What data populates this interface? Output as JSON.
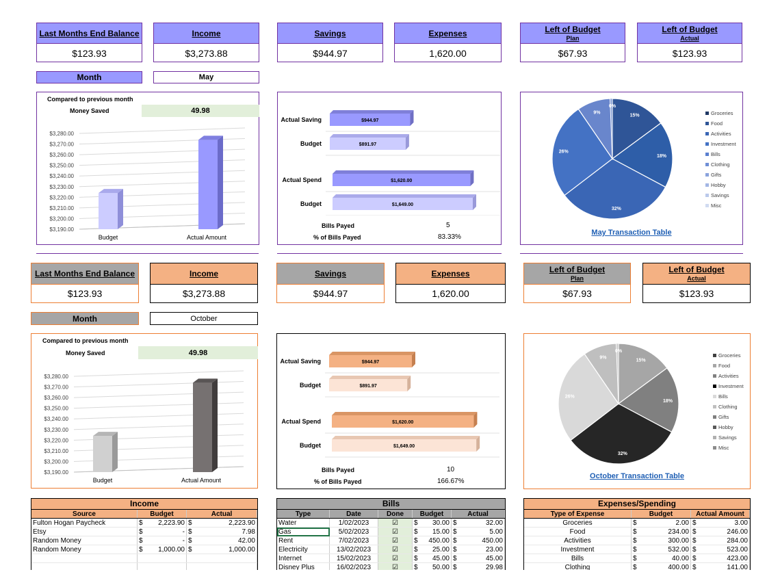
{
  "colors": {
    "purple_accent": "#9999ff",
    "purple_border": "#7030a0",
    "orange_accent": "#f4b183",
    "orange_border": "#ed7d31",
    "grey_accent": "#a6a6a6"
  },
  "may": {
    "kpis": [
      {
        "title": "Last Months End Balance",
        "sub": "",
        "value": "$123.93"
      },
      {
        "title": "Income",
        "sub": "",
        "value": "$3,273.88"
      },
      {
        "title": "Savings",
        "sub": "",
        "value": "$944.97"
      },
      {
        "title": "Expenses",
        "sub": "",
        "value": "1,620.00"
      },
      {
        "title": "Left of Budget",
        "sub": "Plan",
        "value": "$67.93"
      },
      {
        "title": "Left of Budget",
        "sub": "Actual",
        "value": "$123.93"
      }
    ],
    "month_label": "Month",
    "month_value": "May",
    "compared_label": "Compared to previous month",
    "money_saved_label": "Money Saved",
    "money_saved_value": "49.98",
    "bills_payed_label": "Bills Payed",
    "bills_payed_value": "5",
    "pct_bills_label": "% of Bills Payed",
    "pct_bills_value": "83.33%",
    "transaction_link": "May Transaction Table"
  },
  "october": {
    "kpis": [
      {
        "title": "Last Months End Balance",
        "sub": "",
        "value": "$123.93"
      },
      {
        "title": "Income",
        "sub": "",
        "value": "$3,273.88"
      },
      {
        "title": "Savings",
        "sub": "",
        "value": "$944.97"
      },
      {
        "title": "Expenses",
        "sub": "",
        "value": "1,620.00"
      },
      {
        "title": "Left of Budget",
        "sub": "Plan",
        "value": "$67.93"
      },
      {
        "title": "Left of Budget",
        "sub": "Actual",
        "value": "$123.93"
      }
    ],
    "month_label": "Month",
    "month_value": "October",
    "compared_label": "Compared to previous month",
    "money_saved_label": "Money Saved",
    "money_saved_value": "49.98",
    "bills_payed_label": "Bills Payed",
    "bills_payed_value": "10",
    "pct_bills_label": "% of Bills Payed",
    "pct_bills_value": "166.67%",
    "transaction_link": "October Transaction Table"
  },
  "chart_data": [
    {
      "type": "bar",
      "categories": [
        "Budget",
        "Actual Amount"
      ],
      "values": [
        3224,
        3274
      ],
      "ylim": [
        3190,
        3280
      ],
      "yticks": [
        "$3,190.00",
        "$3,200.00",
        "$3,210.00",
        "$3,220.00",
        "$3,230.00",
        "$3,240.00",
        "$3,250.00",
        "$3,260.00",
        "$3,270.00",
        "$3,280.00"
      ]
    },
    {
      "type": "bar",
      "orientation": "horizontal",
      "categories": [
        "Actual Saving",
        "Budget",
        "Actual Spend",
        "Budget"
      ],
      "values": [
        944.97,
        891.97,
        1620.0,
        1649.0
      ],
      "labels": [
        "$944.97",
        "$891.97",
        "$1,620.00",
        "$1,649.00"
      ]
    },
    {
      "type": "pie",
      "legend": [
        "Groceries",
        "Food",
        "Activities",
        "Investment",
        "Bills",
        "Clothing",
        "Gifts",
        "Hobby",
        "Savings",
        "Misc"
      ],
      "slices": [
        15,
        18,
        32,
        26,
        9,
        0,
        0,
        0,
        0,
        0
      ],
      "slice_labels": [
        "15%",
        "18%",
        "32%",
        "26%",
        "9%",
        "0%",
        "0%",
        "0%",
        "0%",
        "0%"
      ],
      "legend_position": "right"
    }
  ],
  "income": {
    "title": "Income",
    "headers": [
      "Source",
      "Budget",
      "Actual"
    ],
    "rows": [
      [
        "Fulton Hogan Paycheck",
        "$",
        "2,223.90",
        "$",
        "2,223.90"
      ],
      [
        "Etsy",
        "$",
        "-",
        "$",
        "7.98"
      ],
      [
        "Random Money",
        "$",
        "-",
        "$",
        "42.00"
      ],
      [
        "Random Money",
        "$",
        "1,000.00",
        "$",
        "1,000.00"
      ]
    ]
  },
  "bills": {
    "title": "Bills",
    "headers": [
      "Type",
      "Date",
      "Done",
      "Budget",
      "Actual"
    ],
    "rows": [
      [
        "Water",
        "1/02/2023",
        "☑",
        "$",
        "30.00",
        "$",
        "32.00"
      ],
      [
        "Gas",
        "5/02/2023",
        "☑",
        "$",
        "15.00",
        "$",
        "5.00"
      ],
      [
        "Rent",
        "7/02/2023",
        "☑",
        "$",
        "450.00",
        "$",
        "450.00"
      ],
      [
        "Electricity",
        "13/02/2023",
        "☑",
        "$",
        "25.00",
        "$",
        "23.00"
      ],
      [
        "Internet",
        "15/02/2023",
        "☑",
        "$",
        "45.00",
        "$",
        "45.00"
      ],
      [
        "Disney Plus",
        "16/02/2023",
        "☑",
        "$",
        "50.00",
        "$",
        "29.98"
      ]
    ]
  },
  "expenses": {
    "title": "Expenses/Spending",
    "headers": [
      "Type of Expense",
      "Budget",
      "Actual Amount"
    ],
    "rows": [
      [
        "Groceries",
        "$",
        "2.00",
        "$",
        "3.00"
      ],
      [
        "Food",
        "$",
        "234.00",
        "$",
        "246.00"
      ],
      [
        "Activities",
        "$",
        "300.00",
        "$",
        "284.00"
      ],
      [
        "Investment",
        "$",
        "532.00",
        "$",
        "523.00"
      ],
      [
        "Bills",
        "$",
        "40.00",
        "$",
        "423.00"
      ],
      [
        "Clothing",
        "$",
        "400.00",
        "$",
        "141.00"
      ]
    ]
  }
}
